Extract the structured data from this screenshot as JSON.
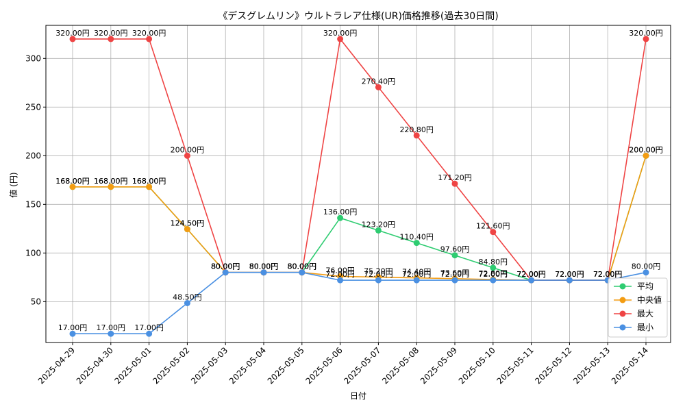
{
  "chart_data": {
    "type": "line",
    "title": "《デスグレムリン》ウルトラレア仕様(UR)価格推移(過去30日間)",
    "xlabel": "日付",
    "ylabel": "値 (円)",
    "ylim": [
      8,
      334
    ],
    "yticks": [
      50,
      100,
      150,
      200,
      250,
      300
    ],
    "grid": true,
    "legend_position": "lower-right",
    "label_suffix": "円",
    "categories": [
      "2025-04-29",
      "2025-04-30",
      "2025-05-01",
      "2025-05-02",
      "2025-05-03",
      "2025-05-04",
      "2025-05-05",
      "2025-05-06",
      "2025-05-07",
      "2025-05-08",
      "2025-05-09",
      "2025-05-10",
      "2025-05-11",
      "2025-05-12",
      "2025-05-13",
      "2025-05-14"
    ],
    "series": [
      {
        "name": "平均",
        "color": "#2ecc71",
        "values": [
          168.0,
          168.0,
          168.0,
          124.5,
          80.0,
          80.0,
          80.0,
          136.0,
          123.2,
          110.4,
          97.6,
          84.8,
          72.0,
          72.0,
          72.0,
          200.0
        ]
      },
      {
        "name": "中央値",
        "color": "#f39c12",
        "values": [
          168.0,
          168.0,
          168.0,
          124.5,
          80.0,
          80.0,
          80.0,
          76.0,
          75.2,
          74.4,
          73.6,
          72.8,
          72.0,
          72.0,
          72.0,
          200.0
        ]
      },
      {
        "name": "最大",
        "color": "#ef4444",
        "values": [
          320.0,
          320.0,
          320.0,
          200.0,
          80.0,
          80.0,
          80.0,
          320.0,
          270.4,
          220.8,
          171.2,
          121.6,
          72.0,
          72.0,
          72.0,
          320.0
        ]
      },
      {
        "name": "最小",
        "color": "#4a90e2",
        "values": [
          17.0,
          17.0,
          17.0,
          48.5,
          80.0,
          80.0,
          80.0,
          72.0,
          72.0,
          72.0,
          72.0,
          72.0,
          72.0,
          72.0,
          72.0,
          80.0
        ]
      }
    ]
  }
}
